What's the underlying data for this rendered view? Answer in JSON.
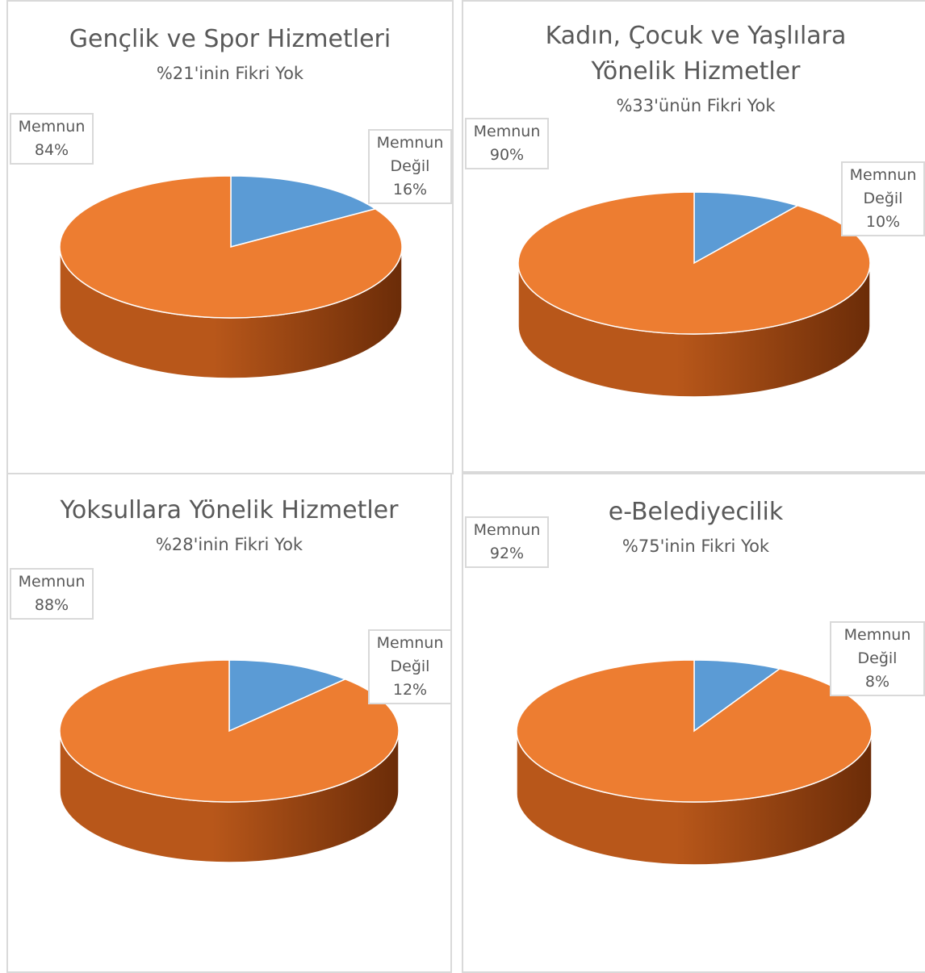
{
  "colors": {
    "memnun": "#ed7d31",
    "memnun_side_dark": "#6b2c08",
    "memnun_side_mid": "#b8571a",
    "memnun_degil": "#5b9bd5",
    "border": "#d9d9d9",
    "text": "#595959"
  },
  "chart_data": [
    {
      "type": "pie",
      "title": "Gençlik ve Spor Hizmetleri",
      "subtitle": "%21'inin Fikri Yok",
      "slices": [
        {
          "label": "Memnun Değil",
          "value": 16,
          "display": "16%"
        },
        {
          "label": "Memnun",
          "value": 84,
          "display": "84%"
        }
      ]
    },
    {
      "type": "pie",
      "title": "Kadın, Çocuk ve Yaşlılara Yönelik Hizmetler",
      "title_line1": "Kadın, Çocuk ve Yaşlılara",
      "title_line2": "Yönelik Hizmetler",
      "subtitle": "%33'ünün Fikri Yok",
      "slices": [
        {
          "label": "Memnun Değil",
          "value": 10,
          "display": "10%"
        },
        {
          "label": "Memnun",
          "value": 90,
          "display": "90%"
        }
      ]
    },
    {
      "type": "pie",
      "title": "Yoksullara Yönelik Hizmetler",
      "subtitle": "%28'inin Fikri Yok",
      "slices": [
        {
          "label": "Memnun Değil",
          "value": 12,
          "display": "12%"
        },
        {
          "label": "Memnun",
          "value": 88,
          "display": "88%"
        }
      ]
    },
    {
      "type": "pie",
      "title": "e-Belediyecilik",
      "subtitle": "%75'inin Fikri Yok",
      "slices": [
        {
          "label": "Memnun Değil",
          "value": 8,
          "display": "8%"
        },
        {
          "label": "Memnun",
          "value": 92,
          "display": "92%"
        }
      ]
    }
  ],
  "labels": {
    "memnun": "Memnun",
    "degil_line1": "Memnun",
    "degil_line2": "Değil"
  }
}
